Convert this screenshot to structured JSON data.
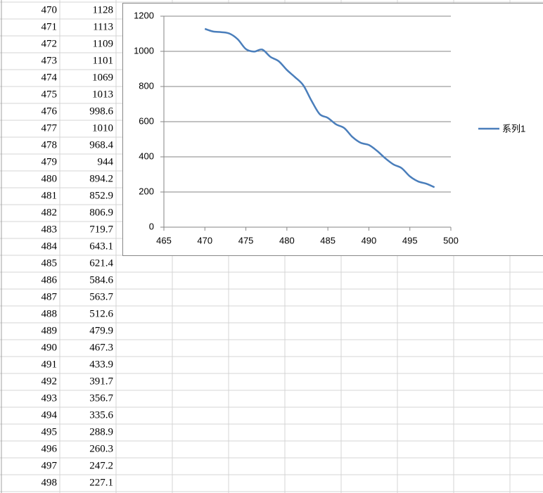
{
  "chart_data": {
    "type": "line",
    "x": [
      470,
      471,
      472,
      473,
      474,
      475,
      476,
      477,
      478,
      479,
      480,
      481,
      482,
      483,
      484,
      485,
      486,
      487,
      488,
      489,
      490,
      491,
      492,
      493,
      494,
      495,
      496,
      497,
      498
    ],
    "series": [
      {
        "name": "系列1",
        "color": "#4a7ebb",
        "values": [
          1128,
          1113,
          1109,
          1101,
          1069,
          1013,
          998.6,
          1010,
          968.4,
          944,
          894.2,
          852.9,
          806.9,
          719.7,
          643.1,
          621.4,
          584.6,
          563.7,
          512.6,
          479.9,
          467.3,
          433.9,
          391.7,
          356.7,
          335.6,
          288.9,
          260.3,
          247.2,
          227.1
        ]
      }
    ],
    "xlim": [
      465,
      500
    ],
    "xticks": [
      465,
      470,
      475,
      480,
      485,
      490,
      495,
      500
    ],
    "ylim": [
      0,
      1200
    ],
    "yticks": [
      0,
      200,
      400,
      600,
      800,
      1000,
      1200
    ],
    "grid": true,
    "legend": "right"
  }
}
